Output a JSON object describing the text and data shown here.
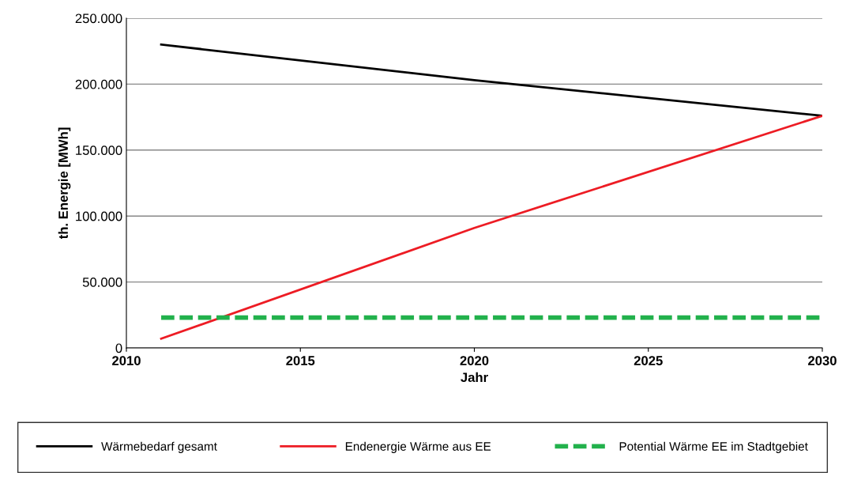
{
  "chart_data": {
    "type": "line",
    "xlabel": "Jahr",
    "ylabel": "th. Energie [MWh]",
    "x": [
      2011,
      2020,
      2030
    ],
    "series": [
      {
        "name": "Wärmebedarf gesamt",
        "color": "#000000",
        "values": [
          230000,
          203000,
          176000
        ],
        "line_style": "solid"
      },
      {
        "name": "Endenergie Wärme aus EE",
        "color": "#ed1c24",
        "values": [
          7000,
          91000,
          176000
        ],
        "line_style": "solid"
      },
      {
        "name": "Potential Wärme EE im Stadtgebiet",
        "color": "#22b14c",
        "values": [
          23000,
          23000,
          23000
        ],
        "line_style": "dashed"
      }
    ],
    "xlim": [
      2010,
      2030
    ],
    "xticks": [
      2010,
      2015,
      2020,
      2025,
      2030
    ],
    "ylim": [
      0,
      250000
    ],
    "yticks": [
      {
        "value": 0,
        "label": "0"
      },
      {
        "value": 50000,
        "label": "50.000"
      },
      {
        "value": 100000,
        "label": "100.000"
      },
      {
        "value": 150000,
        "label": "150.000"
      },
      {
        "value": 200000,
        "label": "200.000"
      },
      {
        "value": 250000,
        "label": "250.000"
      }
    ],
    "grid": "y",
    "legend": "bottom",
    "marker": "none"
  }
}
